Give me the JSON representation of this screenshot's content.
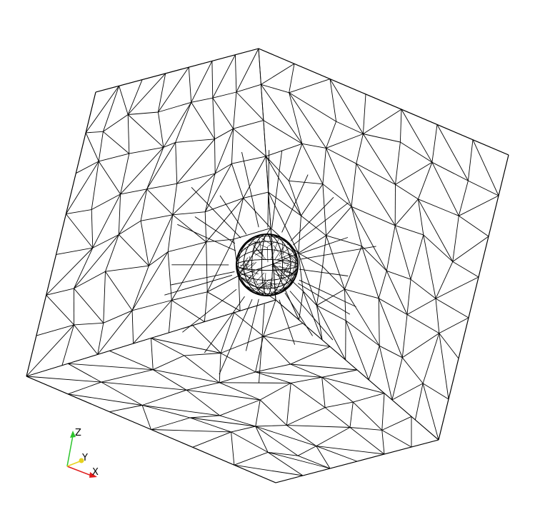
{
  "viewport": {
    "background": "#ffffff",
    "wire_color": "#000000"
  },
  "axes": {
    "x_label": "X",
    "y_label": "Y",
    "z_label": "Z",
    "x_color": "#e01b1b",
    "y_color": "#e6d21e",
    "z_color": "#2cc42c"
  }
}
